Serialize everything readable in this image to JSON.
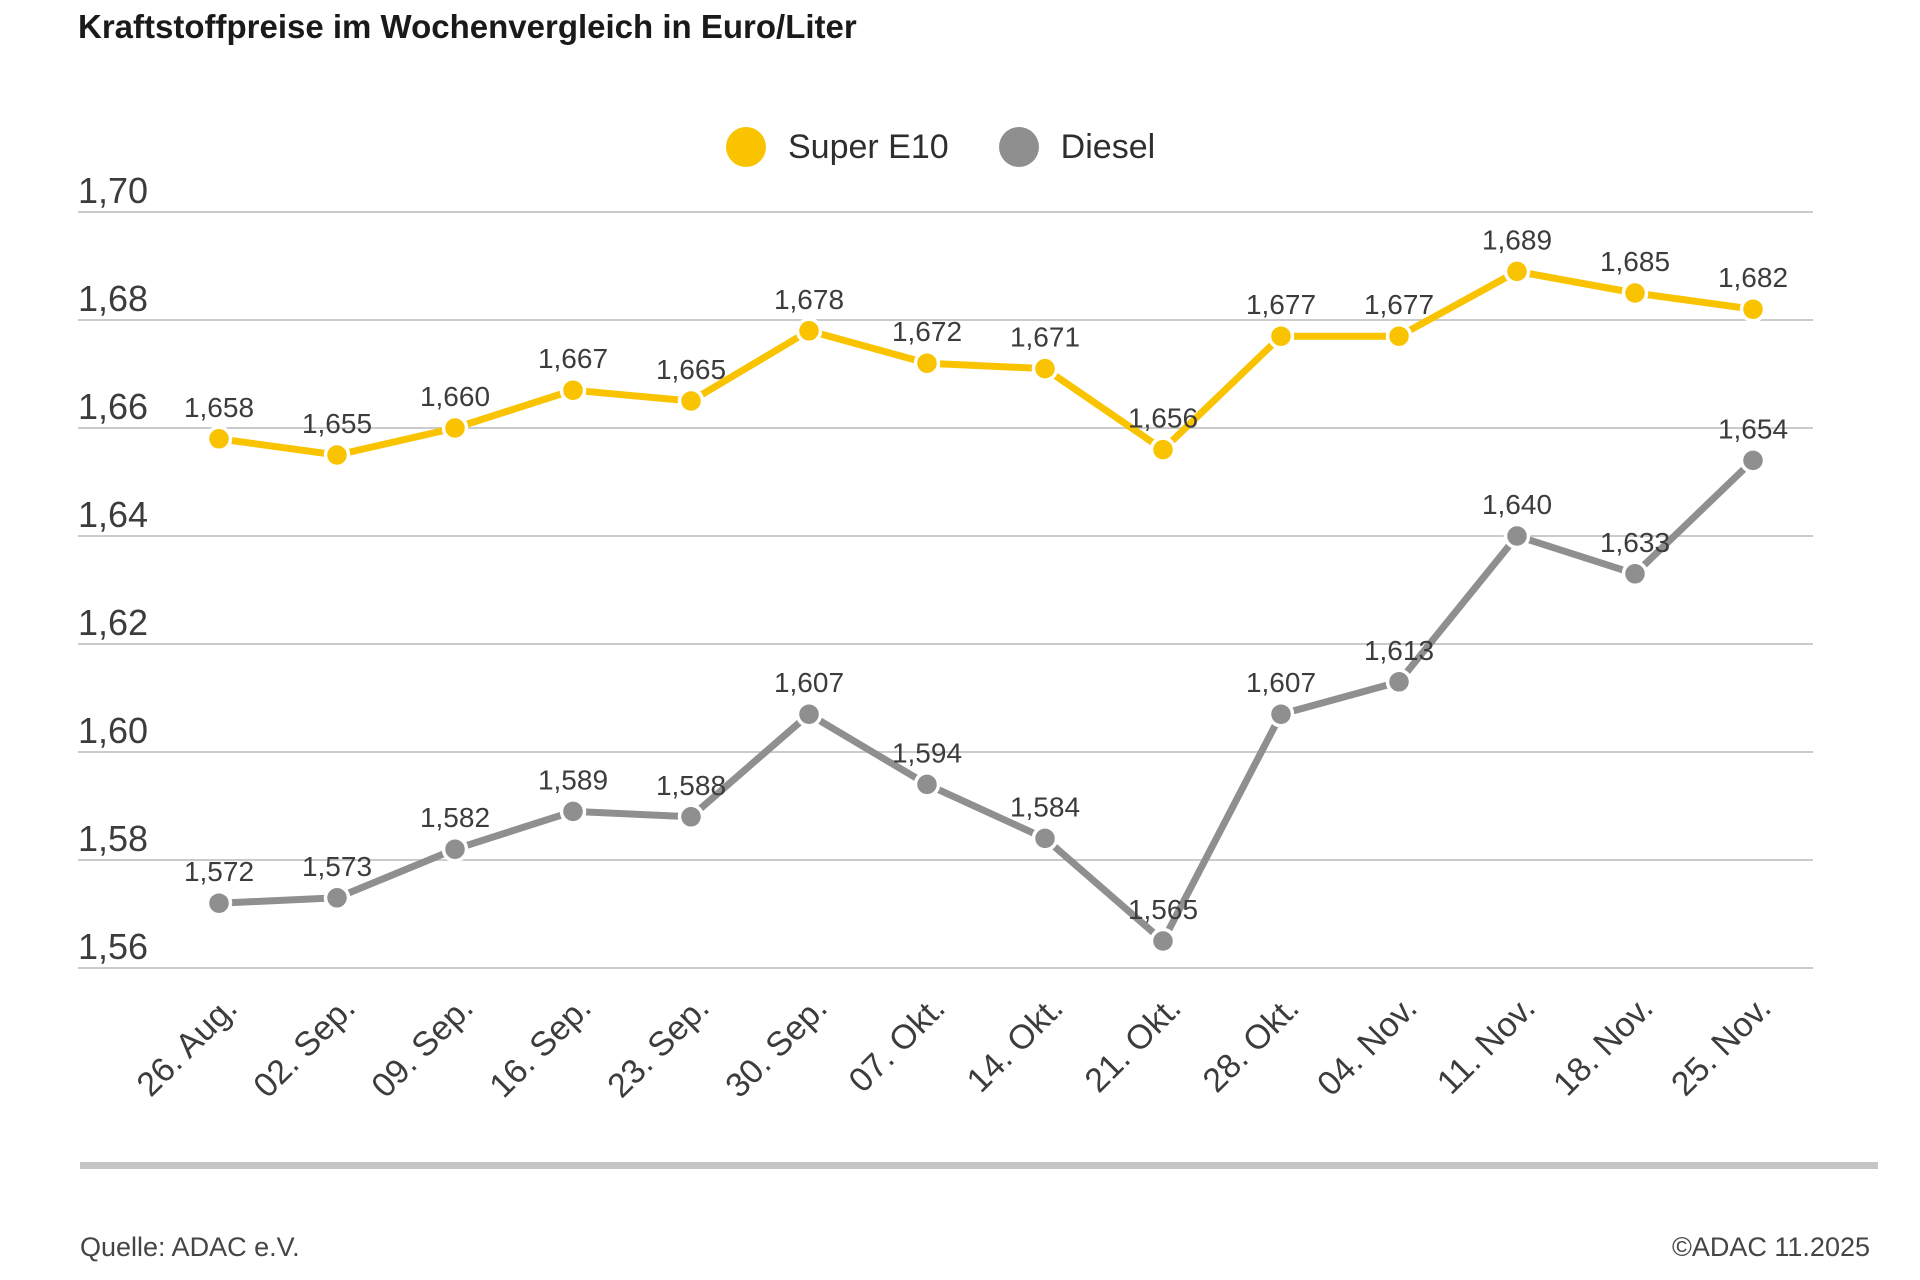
{
  "title": "Kraftstoffpreise im Wochenvergleich in Euro/Liter",
  "legend": {
    "items": [
      {
        "label": "Super E10",
        "color": "#F9C300"
      },
      {
        "label": "Diesel",
        "color": "#8F8F8F"
      }
    ]
  },
  "footer": {
    "source": "Quelle: ADAC e.V.",
    "copyright": "©ADAC 11.2025"
  },
  "colors": {
    "grid": "#CBCBCB",
    "tick_text": "#3C3C3C",
    "point_label_text": "#3C3C3C",
    "marker_halo": "#FFFFFF"
  },
  "chart_data": {
    "type": "line",
    "title": "Kraftstoffpreise im Wochenvergleich in Euro/Liter",
    "unit": "Euro/Liter",
    "categories": [
      "26. Aug.",
      "02. Sep.",
      "09. Sep.",
      "16. Sep.",
      "23. Sep.",
      "30. Sep.",
      "07. Okt.",
      "14. Okt.",
      "21. Okt.",
      "28. Okt.",
      "04. Nov.",
      "11. Nov.",
      "18. Nov.",
      "25. Nov."
    ],
    "series": [
      {
        "name": "Super E10",
        "color": "#F9C300",
        "values": [
          1.658,
          1.655,
          1.66,
          1.667,
          1.665,
          1.678,
          1.672,
          1.671,
          1.656,
          1.677,
          1.677,
          1.689,
          1.685,
          1.682
        ],
        "point_labels": [
          "1,658",
          "1,655",
          "1,660",
          "1,667",
          "1,665",
          "1,678",
          "1,672",
          "1,671",
          "1,656",
          "1,677",
          "1,677",
          "1,689",
          "1,685",
          "1,682"
        ]
      },
      {
        "name": "Diesel",
        "color": "#8F8F8F",
        "values": [
          1.572,
          1.573,
          1.582,
          1.589,
          1.588,
          1.607,
          1.594,
          1.584,
          1.565,
          1.607,
          1.613,
          1.64,
          1.633,
          1.654
        ],
        "point_labels": [
          "1,572",
          "1,573",
          "1,582",
          "1,589",
          "1,588",
          "1,607",
          "1,594",
          "1,584",
          "1,565",
          "1,607",
          "1,613",
          "1,640",
          "1,633",
          "1,654"
        ]
      }
    ],
    "ylim": [
      1.56,
      1.7
    ],
    "yticks": [
      {
        "value": 1.7,
        "label": "1,70"
      },
      {
        "value": 1.68,
        "label": "1,68"
      },
      {
        "value": 1.66,
        "label": "1,66"
      },
      {
        "value": 1.64,
        "label": "1,64"
      },
      {
        "value": 1.62,
        "label": "1,62"
      },
      {
        "value": 1.6,
        "label": "1,60"
      },
      {
        "value": 1.58,
        "label": "1,58"
      },
      {
        "value": 1.56,
        "label": "1,56"
      }
    ],
    "grid": true,
    "legend_position": "top-center"
  }
}
